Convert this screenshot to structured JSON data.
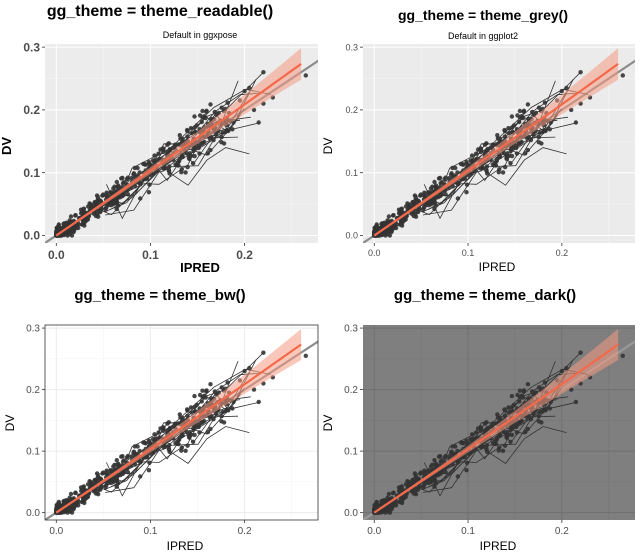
{
  "chart_data": [
    {
      "type": "scatter",
      "title": "gg_theme = theme_readable()",
      "subtitle": "Default in ggxpose",
      "xlabel": "IPRED",
      "ylabel": "DV",
      "xlim": [
        -0.012,
        0.278
      ],
      "ylim": [
        -0.012,
        0.305
      ],
      "x_ticks": [
        "0.0",
        "0.1",
        "0.2"
      ],
      "y_ticks": [
        "0.0",
        "0.1",
        "0.2",
        "0.3"
      ],
      "grid": true,
      "panel_background": "#ececec",
      "grid_major_color": "#ffffff",
      "grid_minor_color": "#f4f4f4",
      "tick_label_color": "#000000",
      "bold_labels": true,
      "panel_border": false,
      "point_color": "#333333",
      "smooth_color": "#f4694a",
      "ribbon_color": "#f59a82",
      "identity_line_color": "#8c8c8c"
    },
    {
      "type": "scatter",
      "title": "gg_theme = theme_grey()",
      "subtitle": "Default in ggplot2",
      "xlabel": "IPRED",
      "ylabel": "DV",
      "xlim": [
        -0.012,
        0.278
      ],
      "ylim": [
        -0.012,
        0.305
      ],
      "x_ticks": [
        "0.0",
        "0.1",
        "0.2"
      ],
      "y_ticks": [
        "0.0",
        "0.1",
        "0.2",
        "0.3"
      ],
      "grid": true,
      "panel_background": "#ebebeb",
      "grid_major_color": "#ffffff",
      "grid_minor_color": "#f4f4f4",
      "tick_label_color": "#4d4d4d",
      "bold_labels": false,
      "panel_border": false,
      "point_color": "#333333",
      "smooth_color": "#f4694a",
      "ribbon_color": "#f59a82",
      "identity_line_color": "#8c8c8c"
    },
    {
      "type": "scatter",
      "title": "gg_theme = theme_bw()",
      "subtitle": "",
      "xlabel": "IPRED",
      "ylabel": "DV",
      "xlim": [
        -0.012,
        0.278
      ],
      "ylim": [
        -0.012,
        0.305
      ],
      "x_ticks": [
        "0.0",
        "0.1",
        "0.2"
      ],
      "y_ticks": [
        "0.0",
        "0.1",
        "0.2",
        "0.3"
      ],
      "grid": true,
      "panel_background": "#ffffff",
      "grid_major_color": "#ebebeb",
      "grid_minor_color": "#f5f5f5",
      "tick_label_color": "#4d4d4d",
      "bold_labels": false,
      "panel_border": true,
      "point_color": "#333333",
      "smooth_color": "#f4694a",
      "ribbon_color": "#f59a82",
      "identity_line_color": "#8c8c8c"
    },
    {
      "type": "scatter",
      "title": "gg_theme = theme_dark()",
      "subtitle": "",
      "xlabel": "IPRED",
      "ylabel": "DV",
      "xlim": [
        -0.012,
        0.278
      ],
      "ylim": [
        -0.012,
        0.305
      ],
      "x_ticks": [
        "0.0",
        "0.1",
        "0.2"
      ],
      "y_ticks": [
        "0.0",
        "0.1",
        "0.2",
        "0.3"
      ],
      "grid": true,
      "panel_background": "#7f7f7f",
      "grid_major_color": "#6f6f6f",
      "grid_minor_color": "#777777",
      "tick_label_color": "#4d4d4d",
      "bold_labels": false,
      "panel_border": false,
      "point_color": "#333333",
      "smooth_color": "#f4694a",
      "ribbon_color": "#f59a82",
      "identity_line_color": "#9a9a9a"
    }
  ]
}
